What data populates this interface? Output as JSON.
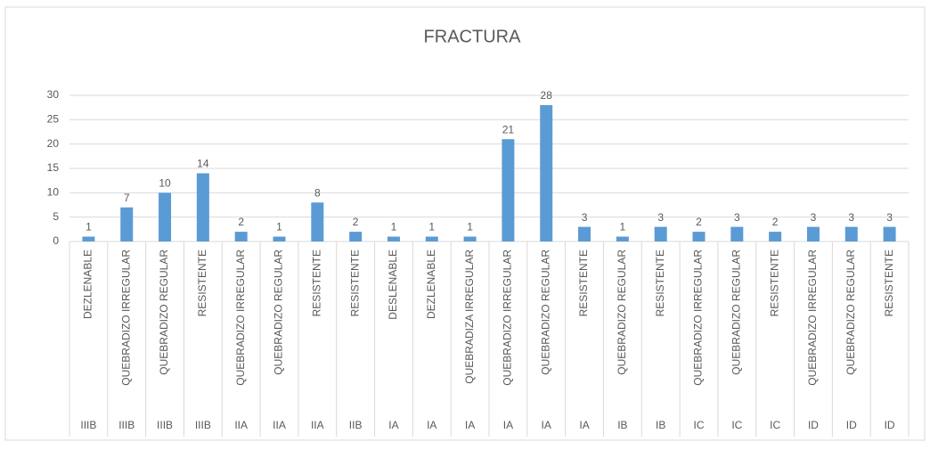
{
  "chart_data": {
    "type": "bar",
    "title": "FRACTURA",
    "categories": [
      "DEZLENABLE",
      "QUEBRADIZO IRREGULAR",
      "QUEBRADIZO REGULAR",
      "RESISTENTE",
      "QUEBRADIZO IRREGULAR",
      "QUEBRADIZO REGULAR",
      "RESISTENTE",
      "RESISTENTE",
      "DESLENABLE",
      "DEZLENABLE",
      "QUEBRADIZA IRREGULAR",
      "QUEBRADIZO IRREGULAR",
      "QUEBRADIZO REGULAR",
      "RESISTENTE",
      "QUEBRADIZO REGULAR",
      "RESISTENTE",
      "QUEBRADIZO IRREGULAR",
      "QUEBRADIZO REGULAR",
      "RESISTENTE",
      "QUEBRADIZO IRREGULAR",
      "QUEBRADIZO REGULAR",
      "RESISTENTE"
    ],
    "groups": [
      "IIIB",
      "IIIB",
      "IIIB",
      "IIIB",
      "IIA",
      "IIA",
      "IIA",
      "IIB",
      "IA",
      "IA",
      "IA",
      "IA",
      "IA",
      "IA",
      "IB",
      "IB",
      "IC",
      "IC",
      "IC",
      "ID",
      "ID",
      "ID"
    ],
    "values": [
      1,
      7,
      10,
      14,
      2,
      1,
      8,
      2,
      1,
      1,
      1,
      21,
      28,
      3,
      1,
      3,
      2,
      3,
      2,
      3,
      3,
      3
    ],
    "color": "#5b9bd5",
    "ylim": [
      0,
      30
    ],
    "yticks": [
      0,
      5,
      10,
      15,
      20,
      25,
      30
    ],
    "grid": true
  }
}
